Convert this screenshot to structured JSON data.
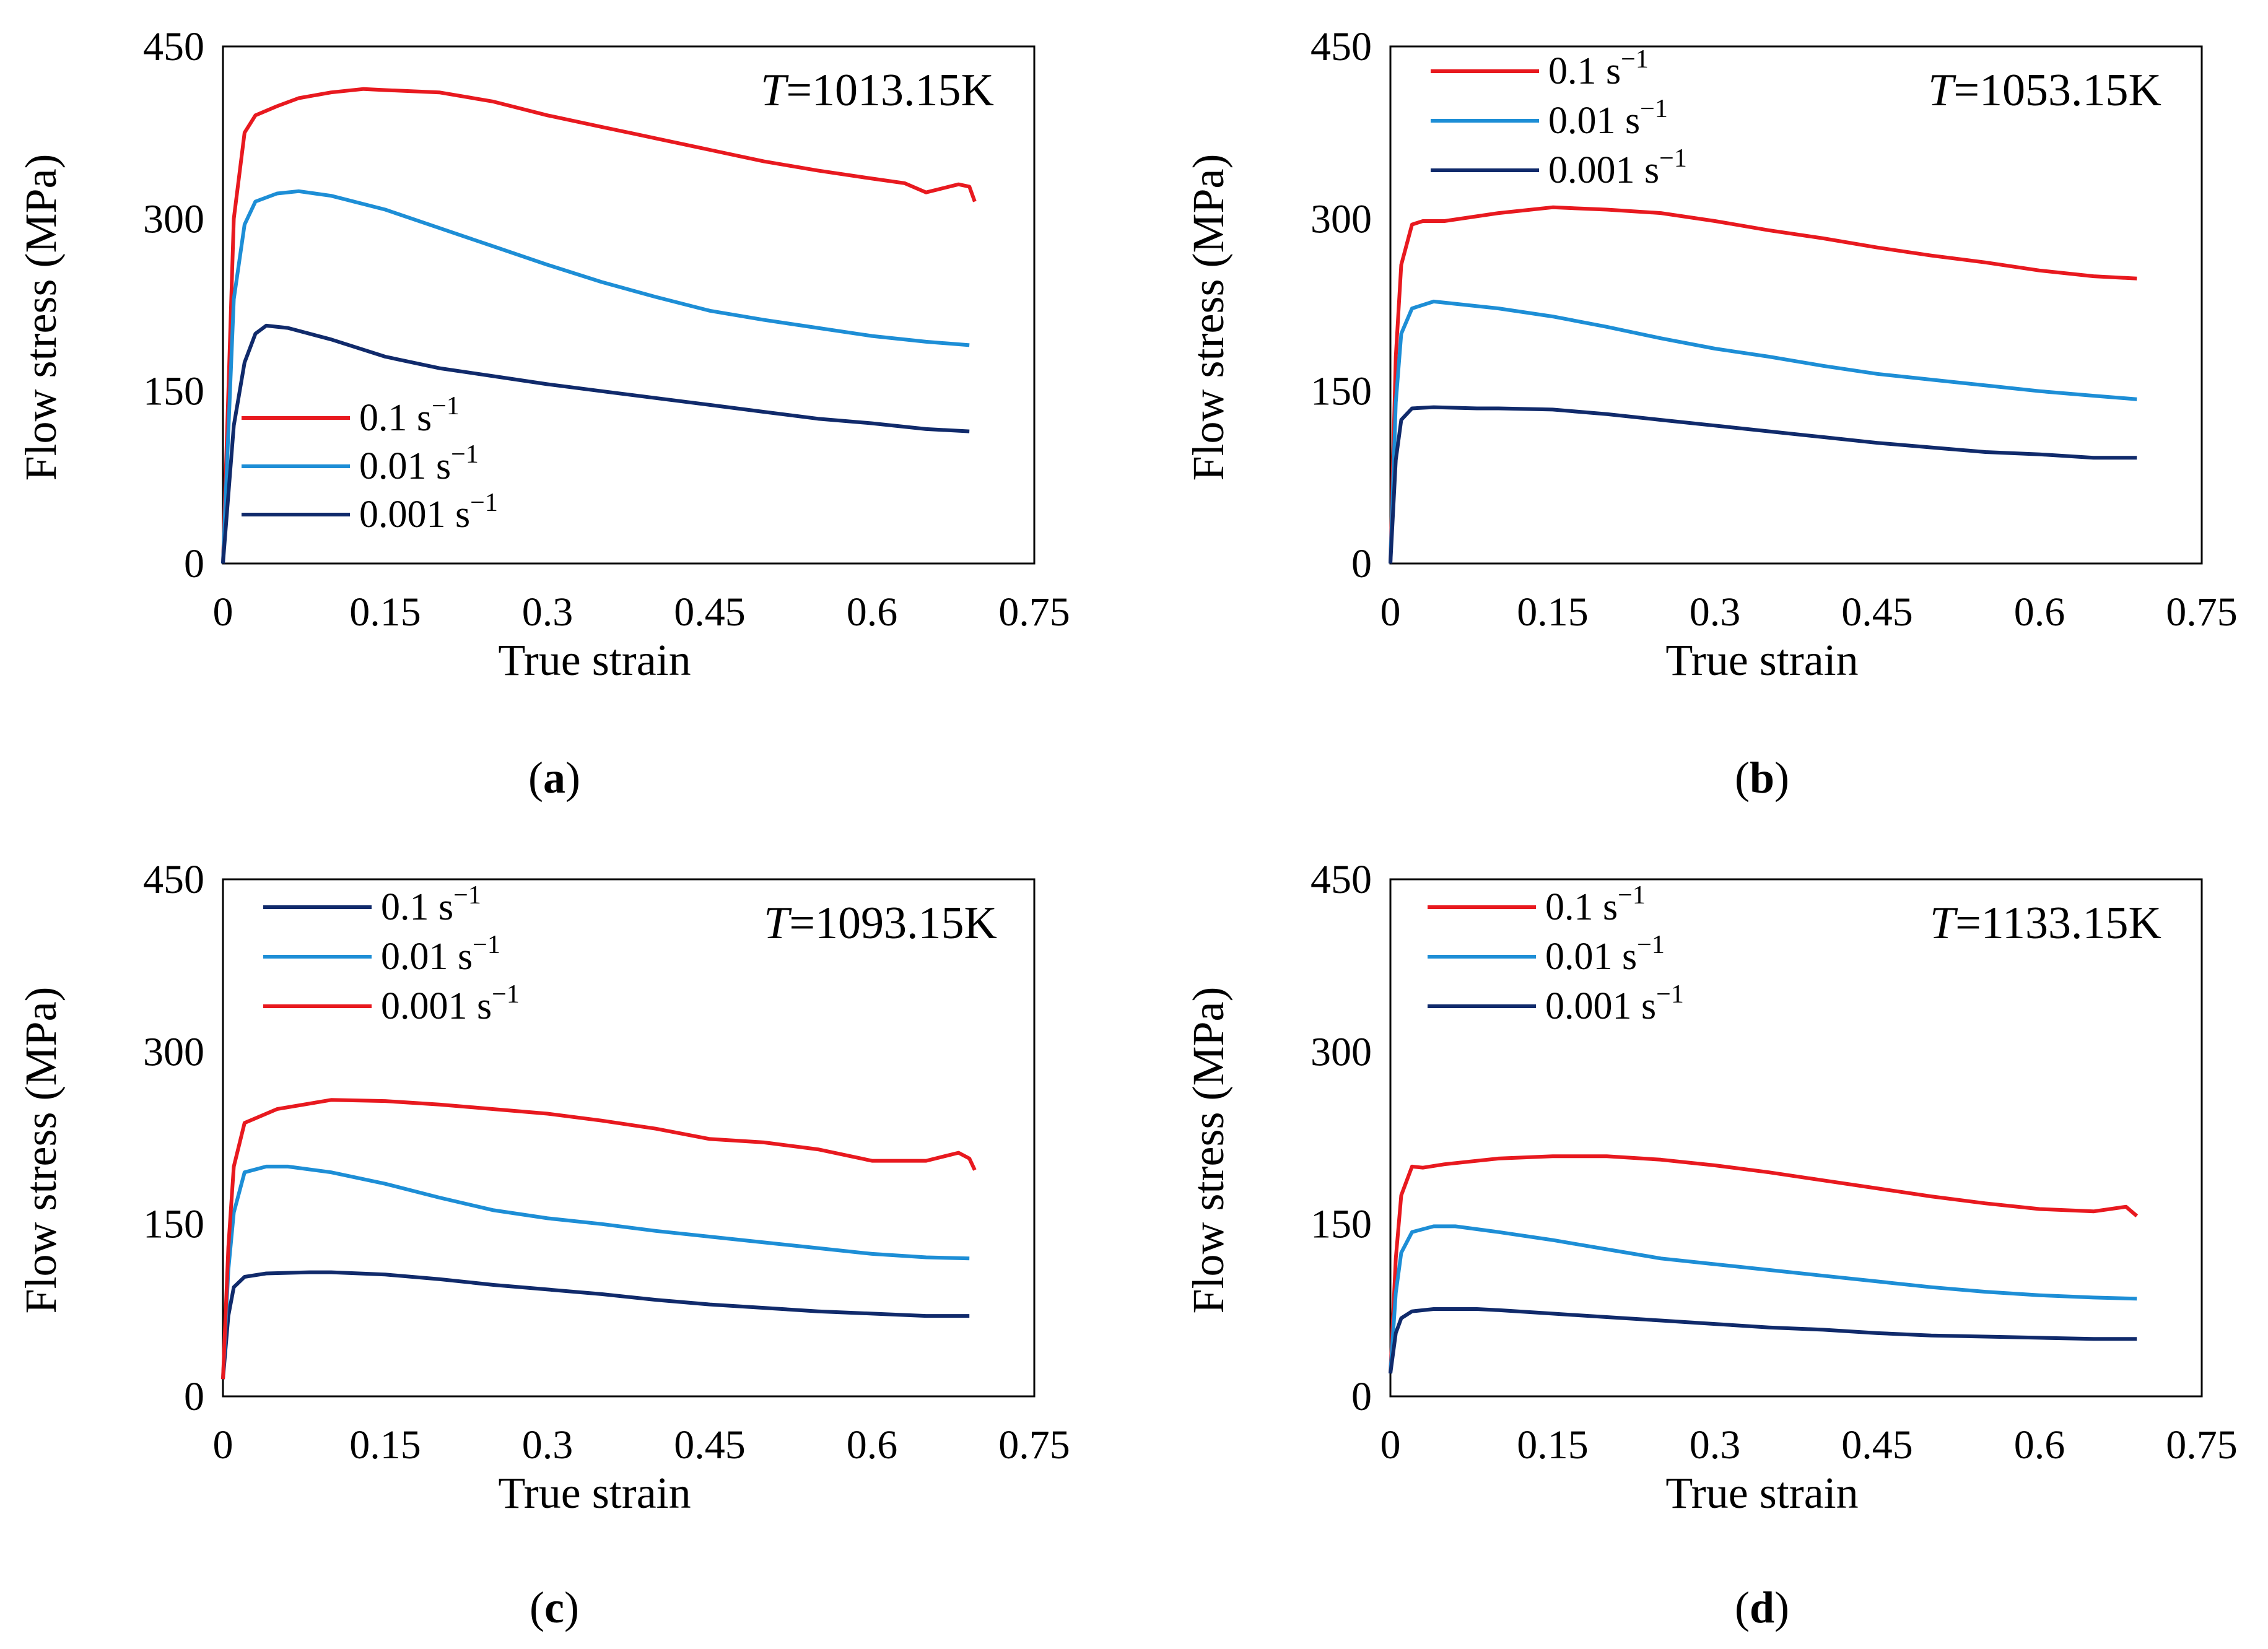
{
  "figure": {
    "y_axis_label": "Flow stress (MPa)",
    "x_axis_label": "True strain",
    "x_ticks": [
      "0",
      "0.15",
      "0.3",
      "0.45",
      "0.6",
      "0.75"
    ],
    "y_ticks": [
      "0",
      "150",
      "300",
      "450"
    ],
    "colors": {
      "red": "#e8191f",
      "light_blue": "#1d8ed6",
      "navy": "#102a6b"
    }
  },
  "chart_data": [
    {
      "type": "line",
      "panel_label": "(a)",
      "title_var": "T",
      "title_rest": "=1013.15K",
      "xlabel": "True strain",
      "ylabel": "Flow stress (MPa)",
      "xlim": [
        0,
        0.75
      ],
      "ylim": [
        0,
        450
      ],
      "legend_position": "bottom-left",
      "series": [
        {
          "name_num": "0.1 s",
          "name_exp": "−1",
          "color": "#e8191f",
          "x": [
            0,
            0.01,
            0.02,
            0.03,
            0.05,
            0.07,
            0.1,
            0.13,
            0.15,
            0.2,
            0.25,
            0.3,
            0.35,
            0.4,
            0.45,
            0.5,
            0.55,
            0.6,
            0.63,
            0.65,
            0.68,
            0.69,
            0.695
          ],
          "y": [
            0,
            300,
            375,
            390,
            398,
            405,
            410,
            413,
            412,
            410,
            402,
            390,
            380,
            370,
            360,
            350,
            342,
            335,
            331,
            323,
            330,
            328,
            315
          ]
        },
        {
          "name_num": "0.01 s",
          "name_exp": "−1",
          "color": "#1d8ed6",
          "x": [
            0,
            0.01,
            0.02,
            0.03,
            0.05,
            0.07,
            0.1,
            0.15,
            0.2,
            0.25,
            0.3,
            0.35,
            0.4,
            0.45,
            0.5,
            0.55,
            0.6,
            0.65,
            0.69
          ],
          "y": [
            0,
            230,
            295,
            315,
            322,
            324,
            320,
            308,
            292,
            276,
            260,
            245,
            232,
            220,
            212,
            205,
            198,
            193,
            190
          ]
        },
        {
          "name_num": "0.001 s",
          "name_exp": "−1",
          "color": "#102a6b",
          "x": [
            0,
            0.01,
            0.02,
            0.03,
            0.04,
            0.06,
            0.1,
            0.15,
            0.2,
            0.25,
            0.3,
            0.35,
            0.4,
            0.45,
            0.5,
            0.55,
            0.6,
            0.65,
            0.69
          ],
          "y": [
            0,
            120,
            175,
            200,
            207,
            205,
            195,
            180,
            170,
            163,
            156,
            150,
            144,
            138,
            132,
            126,
            122,
            117,
            115
          ]
        }
      ]
    },
    {
      "type": "line",
      "panel_label": "(b)",
      "title_var": "T",
      "title_rest": "=1053.15K",
      "xlabel": "True strain",
      "ylabel": "Flow stress (MPa)",
      "xlim": [
        0,
        0.75
      ],
      "ylim": [
        0,
        450
      ],
      "legend_position": "top-left",
      "series": [
        {
          "name_num": "0.1 s",
          "name_exp": "−1",
          "color": "#e8191f",
          "x": [
            0,
            0.005,
            0.01,
            0.02,
            0.03,
            0.05,
            0.1,
            0.15,
            0.2,
            0.25,
            0.3,
            0.35,
            0.4,
            0.45,
            0.5,
            0.55,
            0.6,
            0.65,
            0.69
          ],
          "y": [
            0,
            180,
            260,
            295,
            298,
            298,
            305,
            310,
            308,
            305,
            298,
            290,
            283,
            275,
            268,
            262,
            255,
            250,
            248
          ]
        },
        {
          "name_num": "0.01 s",
          "name_exp": "−1",
          "color": "#1d8ed6",
          "x": [
            0,
            0.005,
            0.01,
            0.02,
            0.04,
            0.06,
            0.1,
            0.15,
            0.2,
            0.25,
            0.3,
            0.35,
            0.4,
            0.45,
            0.5,
            0.55,
            0.6,
            0.65,
            0.69
          ],
          "y": [
            0,
            140,
            200,
            222,
            228,
            226,
            222,
            215,
            206,
            196,
            187,
            180,
            172,
            165,
            160,
            155,
            150,
            146,
            143
          ]
        },
        {
          "name_num": "0.001 s",
          "name_exp": "−1",
          "color": "#102a6b",
          "x": [
            0,
            0.005,
            0.01,
            0.02,
            0.04,
            0.08,
            0.1,
            0.15,
            0.2,
            0.25,
            0.3,
            0.35,
            0.4,
            0.45,
            0.5,
            0.55,
            0.6,
            0.65,
            0.69
          ],
          "y": [
            0,
            90,
            125,
            135,
            136,
            135,
            135,
            134,
            130,
            125,
            120,
            115,
            110,
            105,
            101,
            97,
            95,
            92,
            92
          ]
        }
      ]
    },
    {
      "type": "line",
      "panel_label": "(c)",
      "title_var": "T",
      "title_rest": "=1093.15K",
      "xlabel": "True strain",
      "ylabel": "Flow stress (MPa)",
      "xlim": [
        0,
        0.75
      ],
      "ylim": [
        0,
        450
      ],
      "legend_position": "top-left",
      "series": [
        {
          "name_num": "0.1 s",
          "name_exp": "−1",
          "color": "#102a6b",
          "x": [
            0,
            0.005,
            0.01,
            0.02,
            0.04,
            0.08,
            0.1,
            0.15,
            0.2,
            0.25,
            0.3,
            0.35,
            0.4,
            0.45,
            0.5,
            0.55,
            0.6,
            0.65,
            0.69
          ],
          "y": [
            15,
            70,
            95,
            104,
            107,
            108,
            108,
            106,
            102,
            97,
            93,
            89,
            84,
            80,
            77,
            74,
            72,
            70,
            70
          ]
        },
        {
          "name_num": "0.01 s",
          "name_exp": "−1",
          "color": "#1d8ed6",
          "x": [
            0,
            0.005,
            0.01,
            0.02,
            0.04,
            0.06,
            0.1,
            0.15,
            0.2,
            0.25,
            0.3,
            0.35,
            0.4,
            0.45,
            0.5,
            0.55,
            0.6,
            0.65,
            0.69
          ],
          "y": [
            15,
            110,
            160,
            195,
            200,
            200,
            195,
            185,
            173,
            162,
            155,
            150,
            144,
            139,
            134,
            129,
            124,
            121,
            120
          ]
        },
        {
          "name_num": "0.001 s",
          "name_exp": "−1",
          "color": "#e8191f",
          "x": [
            0,
            0.005,
            0.01,
            0.02,
            0.03,
            0.05,
            0.1,
            0.15,
            0.2,
            0.25,
            0.3,
            0.35,
            0.4,
            0.45,
            0.5,
            0.55,
            0.6,
            0.65,
            0.68,
            0.69,
            0.695
          ],
          "y": [
            15,
            130,
            200,
            238,
            242,
            250,
            258,
            257,
            254,
            250,
            246,
            240,
            233,
            224,
            221,
            215,
            205,
            205,
            212,
            207,
            197
          ]
        }
      ]
    },
    {
      "type": "line",
      "panel_label": "(d)",
      "title_var": "T",
      "title_rest": "=1133.15K",
      "xlabel": "True strain",
      "ylabel": "Flow stress (MPa)",
      "xlim": [
        0,
        0.75
      ],
      "ylim": [
        0,
        450
      ],
      "legend_position": "top-left",
      "series": [
        {
          "name_num": "0.1 s",
          "name_exp": "−1",
          "color": "#e8191f",
          "x": [
            0,
            0.005,
            0.01,
            0.02,
            0.03,
            0.05,
            0.1,
            0.15,
            0.2,
            0.25,
            0.3,
            0.35,
            0.4,
            0.45,
            0.5,
            0.55,
            0.6,
            0.65,
            0.68,
            0.69
          ],
          "y": [
            20,
            120,
            175,
            200,
            199,
            202,
            207,
            209,
            209,
            206,
            201,
            195,
            188,
            181,
            174,
            168,
            163,
            161,
            165,
            157
          ]
        },
        {
          "name_num": "0.01 s",
          "name_exp": "−1",
          "color": "#1d8ed6",
          "x": [
            0,
            0.005,
            0.01,
            0.02,
            0.04,
            0.06,
            0.1,
            0.15,
            0.2,
            0.25,
            0.3,
            0.35,
            0.4,
            0.45,
            0.5,
            0.55,
            0.6,
            0.65,
            0.69
          ],
          "y": [
            20,
            90,
            125,
            143,
            148,
            148,
            143,
            136,
            128,
            120,
            115,
            110,
            105,
            100,
            95,
            91,
            88,
            86,
            85
          ]
        },
        {
          "name_num": "0.001 s",
          "name_exp": "−1",
          "color": "#102a6b",
          "x": [
            0,
            0.005,
            0.01,
            0.02,
            0.04,
            0.08,
            0.1,
            0.15,
            0.2,
            0.25,
            0.3,
            0.35,
            0.4,
            0.45,
            0.5,
            0.55,
            0.6,
            0.65,
            0.69
          ],
          "y": [
            20,
            55,
            68,
            74,
            76,
            76,
            75,
            72,
            69,
            66,
            63,
            60,
            58,
            55,
            53,
            52,
            51,
            50,
            50
          ]
        }
      ]
    }
  ]
}
